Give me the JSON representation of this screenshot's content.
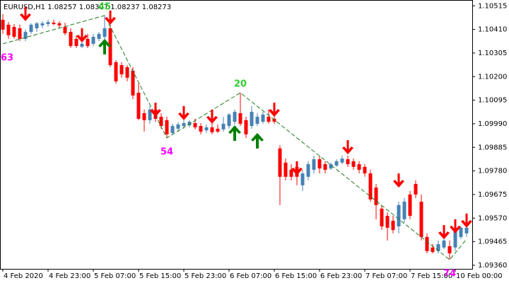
{
  "chart_data": {
    "type": "candlestick",
    "title": "EURUSD,H1  1.08257 1.08307 1.08237 1.08273",
    "up_color": "#4682b4",
    "down_color": "#ff0000",
    "categories": [
      "4 Feb 2020",
      null,
      null,
      null,
      null,
      null,
      null,
      null,
      "4 Feb 23:00",
      null,
      null,
      null,
      null,
      null,
      null,
      null,
      "5 Feb 07:00",
      null,
      null,
      null,
      null,
      null,
      null,
      null,
      "5 Feb 15:00",
      null,
      null,
      null,
      null,
      null,
      null,
      null,
      "5 Feb 23:00",
      null,
      null,
      null,
      null,
      null,
      null,
      null,
      "6 Feb 07:00",
      null,
      null,
      null,
      null,
      null,
      null,
      null,
      "6 Feb 15:00",
      null,
      null,
      null,
      null,
      null,
      null,
      null,
      "6 Feb 23:00",
      null,
      null,
      null,
      null,
      null,
      null,
      null,
      "7 Feb 07:00",
      null,
      null,
      null,
      null,
      null,
      null,
      null,
      "7 Feb 15:00",
      null,
      null,
      null,
      null,
      null,
      null,
      null,
      "10 Feb 00:00",
      null,
      null
    ],
    "ohlc": [
      [
        1.10453,
        1.10478,
        1.1039,
        1.10409
      ],
      [
        1.10431,
        1.10443,
        1.10368,
        1.10384
      ],
      [
        1.10421,
        1.10434,
        1.10368,
        1.10377
      ],
      [
        1.10415,
        1.10431,
        1.10358,
        1.10368
      ],
      [
        1.10368,
        1.10409,
        1.10358,
        1.10399
      ],
      [
        1.10399,
        1.10437,
        1.1039,
        1.10431
      ],
      [
        1.10415,
        1.10443,
        1.10399,
        1.10437
      ],
      [
        1.10428,
        1.10447,
        1.10415,
        1.10437
      ],
      [
        1.10434,
        1.10453,
        1.10421,
        1.10443
      ],
      [
        1.1044,
        1.10453,
        1.10428,
        1.10434
      ],
      [
        1.10437,
        1.10447,
        1.10415,
        1.10428
      ],
      [
        1.10421,
        1.1044,
        1.10384,
        1.10393
      ],
      [
        1.10399,
        1.10415,
        1.10327,
        1.10336
      ],
      [
        1.10368,
        1.10384,
        1.10327,
        1.10336
      ],
      [
        1.10333,
        1.10368,
        1.10327,
        1.10346
      ],
      [
        1.10368,
        1.1039,
        1.10327,
        1.10336
      ],
      [
        1.10346,
        1.1039,
        1.10336,
        1.10377
      ],
      [
        1.10368,
        1.10399,
        1.10358,
        1.1039
      ],
      [
        1.10377,
        1.10472,
        1.10368,
        1.10415
      ],
      [
        1.10415,
        1.10462,
        1.10242,
        1.10251
      ],
      [
        1.10264,
        1.10273,
        1.10169,
        1.10179
      ],
      [
        1.10251,
        1.10264,
        1.10195,
        1.1021
      ],
      [
        1.10242,
        1.10251,
        1.10179,
        1.10195
      ],
      [
        1.10226,
        1.10242,
        1.101,
        1.10116
      ],
      [
        1.10128,
        1.10169,
        1.10006,
        1.10012
      ],
      [
        1.10037,
        1.10053,
        1.09955,
        1.10006
      ],
      [
        1.10006,
        1.10069,
        1.0999,
        1.10053
      ],
      [
        1.10053,
        1.10069,
        1.09999,
        1.10012
      ],
      [
        1.10021,
        1.10037,
        1.09968,
        1.0998
      ],
      [
        1.10006,
        1.10021,
        1.09927,
        1.09943
      ],
      [
        1.09949,
        1.0999,
        1.09943,
        1.0998
      ],
      [
        1.09968,
        1.09996,
        1.09955,
        1.09987
      ],
      [
        1.0998,
        1.10006,
        1.09968,
        1.09993
      ],
      [
        1.09983,
        1.10006,
        1.09974,
        1.09999
      ],
      [
        1.09993,
        1.10012,
        1.09965,
        1.09974
      ],
      [
        1.0998,
        1.09993,
        1.09943,
        1.09955
      ],
      [
        1.09961,
        1.09987,
        1.09949,
        1.09974
      ],
      [
        1.09974,
        1.09999,
        1.09943,
        1.09952
      ],
      [
        1.09968,
        1.09987,
        1.09949,
        1.09955
      ],
      [
        1.09965,
        1.10021,
        1.09955,
        1.0999
      ],
      [
        1.0998,
        1.10037,
        1.09968,
        1.10031
      ],
      [
        1.09999,
        1.10053,
        1.09987,
        1.10043
      ],
      [
        1.10037,
        1.10128,
        1.0998,
        1.0999
      ],
      [
        1.10006,
        1.10021,
        1.09927,
        1.09943
      ],
      [
        1.0998,
        1.10069,
        1.09968,
        1.10043
      ],
      [
        1.0999,
        1.10037,
        1.0998,
        1.10021
      ],
      [
        1.09999,
        1.10043,
        1.0999,
        1.10031
      ],
      [
        1.10021,
        1.10053,
        1.0999,
        1.09999
      ],
      [
        1.10012,
        1.10037,
        1.0999,
        1.09999
      ],
      [
        1.0988,
        1.09895,
        1.09628,
        1.09754
      ],
      [
        1.09817,
        1.09835,
        1.09738,
        1.09754
      ],
      [
        1.09785,
        1.0981,
        1.09738,
        1.09754
      ],
      [
        1.09798,
        1.09817,
        1.09716,
        1.09754
      ],
      [
        1.09716,
        1.09785,
        1.09691,
        1.09769
      ],
      [
        1.09754,
        1.09823,
        1.09738,
        1.0981
      ],
      [
        1.09785,
        1.09848,
        1.09769,
        1.09832
      ],
      [
        1.09832,
        1.09848,
        1.09769,
        1.09791
      ],
      [
        1.0981,
        1.09823,
        1.09769,
        1.09785
      ],
      [
        1.09791,
        1.09817,
        1.09785,
        1.0981
      ],
      [
        1.09804,
        1.09832,
        1.09798,
        1.09823
      ],
      [
        1.09817,
        1.09848,
        1.0981,
        1.09835
      ],
      [
        1.09832,
        1.09848,
        1.09798,
        1.0981
      ],
      [
        1.09823,
        1.09835,
        1.09785,
        1.09798
      ],
      [
        1.0981,
        1.09823,
        1.09769,
        1.09785
      ],
      [
        1.09798,
        1.0981,
        1.09754,
        1.09769
      ],
      [
        1.09769,
        1.09785,
        1.09643,
        1.09653
      ],
      [
        1.09706,
        1.09722,
        1.09565,
        1.09628
      ],
      [
        1.09612,
        1.09628,
        1.09517,
        1.09533
      ],
      [
        1.0958,
        1.09596,
        1.0947,
        1.09527
      ],
      [
        1.09558,
        1.0958,
        1.09502,
        1.09517
      ],
      [
        1.09533,
        1.09643,
        1.09502,
        1.09628
      ],
      [
        1.09565,
        1.09659,
        1.09549,
        1.09643
      ],
      [
        1.09675,
        1.09691,
        1.09565,
        1.0958
      ],
      [
        1.09722,
        1.09738,
        1.09659,
        1.09675
      ],
      [
        1.09643,
        1.09675,
        1.0947,
        1.09486
      ],
      [
        1.09486,
        1.09502,
        1.09413,
        1.09423
      ],
      [
        1.09439,
        1.09454,
        1.09413,
        1.09419
      ],
      [
        1.09423,
        1.0947,
        1.09413,
        1.09454
      ],
      [
        1.09439,
        1.09486,
        1.09432,
        1.0947
      ],
      [
        1.09445,
        1.0947,
        1.09385,
        1.09413
      ],
      [
        1.09439,
        1.09533,
        1.09423,
        1.09517
      ],
      [
        1.09486,
        1.09533,
        1.09476,
        1.09527
      ],
      [
        1.09502,
        1.09533,
        1.09486,
        1.09527
      ]
    ],
    "ylim": [
      1.09344,
      1.10541
    ],
    "yticks": [
      1.10515,
      {
        "value": 1.1041,
        "label": "1.10410"
      },
      1.10305,
      {
        "value": 1.102,
        "label": "1.10200"
      },
      1.10095,
      {
        "value": 1.0999,
        "label": "1.09990"
      },
      1.09885,
      {
        "value": 1.0978,
        "label": "1.09780"
      },
      1.09675,
      {
        "value": 1.0957,
        "label": "1.09570"
      },
      1.09465,
      {
        "value": 1.0936,
        "label": "1.09360"
      }
    ],
    "zigzag": {
      "color": "#1e7b1e",
      "x": [
        0,
        18,
        29,
        42,
        79,
        82
      ],
      "y": [
        1.10346,
        1.10472,
        1.09927,
        1.10128,
        1.09385,
        1.09476
      ],
      "labels": [
        63,
        45,
        54,
        20,
        74
      ],
      "label_colors": [
        "#ff00ff",
        "#32cd32",
        "#ff00ff",
        "#32cd32",
        "#ff00ff"
      ]
    },
    "signals": {
      "down_color": "#ff0000",
      "up_color": "#008000",
      "down": {
        "x": [
          4,
          14,
          19,
          27,
          32,
          37,
          48,
          52,
          61,
          70,
          78,
          80,
          82
        ],
        "y": [
          1.10447,
          1.10352,
          1.10431,
          1.10021,
          1.10006,
          1.0999,
          1.10021,
          1.0976,
          1.09854,
          1.09706,
          1.09476,
          1.09502,
          1.09527
        ]
      },
      "up": {
        "x": [
          18,
          41,
          45
        ],
        "y": [
          1.10368,
          1.09983,
          1.09949
        ]
      }
    }
  }
}
